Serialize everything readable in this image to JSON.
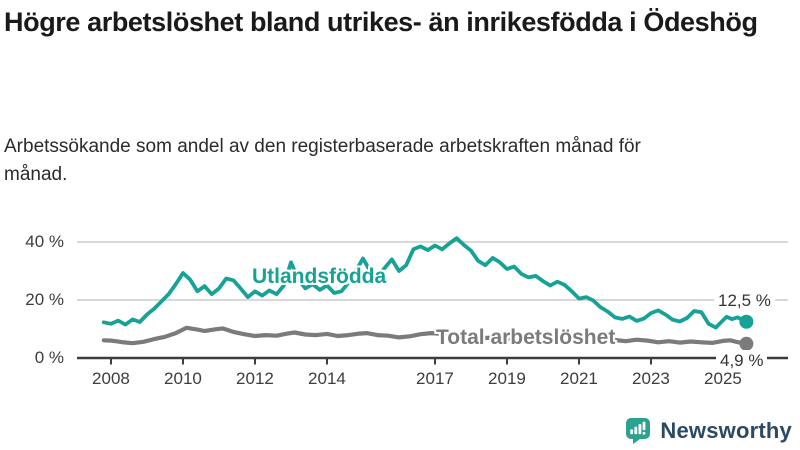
{
  "title": "Högre arbetslöshet bland utrikes- än inrikesfödda i Ödeshög",
  "subtitle": "Arbetssökande som andel av den registerbaserade arbetskraften månad för månad.",
  "colors": {
    "teal_series": "#16a296",
    "gray_series": "#7b7b7b",
    "gridline": "#cccccc",
    "axis": "#3d3d3d",
    "tick_text": "#3d3d3d",
    "logo_teal": "#2ba18f",
    "logo_navy": "#2c4a63"
  },
  "chart_data": {
    "type": "line",
    "title": "Högre arbetslöshet bland utrikes- än inrikesfödda i Ödeshög",
    "xlabel": "",
    "ylabel": "",
    "grid": "horizontal",
    "legend_position": "inline-labels",
    "xlim": [
      2007.056,
      2026.806
    ],
    "ylim": [
      0,
      45
    ],
    "y_ticks": [
      {
        "value": 0,
        "label": "0 %"
      },
      {
        "value": 20,
        "label": "20 %"
      },
      {
        "value": 40,
        "label": "40 %"
      }
    ],
    "x_ticks": [
      2008,
      2010,
      2012,
      2014,
      2017,
      2019,
      2021,
      2023,
      2025
    ],
    "series": [
      {
        "name": "Utlandsfödda",
        "color": "#16a296",
        "end_label": "12,5 %",
        "end_value": 12.5,
        "points": [
          [
            2007.8,
            12.3
          ],
          [
            2008.0,
            11.8
          ],
          [
            2008.2,
            12.9
          ],
          [
            2008.4,
            11.5
          ],
          [
            2008.6,
            13.3
          ],
          [
            2008.8,
            12.4
          ],
          [
            2009.0,
            15.0
          ],
          [
            2009.2,
            17.0
          ],
          [
            2009.4,
            19.5
          ],
          [
            2009.6,
            22.0
          ],
          [
            2009.8,
            25.5
          ],
          [
            2010.0,
            29.3
          ],
          [
            2010.2,
            27.0
          ],
          [
            2010.4,
            23.0
          ],
          [
            2010.6,
            24.8
          ],
          [
            2010.8,
            22.0
          ],
          [
            2011.0,
            24.0
          ],
          [
            2011.2,
            27.4
          ],
          [
            2011.4,
            26.8
          ],
          [
            2011.6,
            24.0
          ],
          [
            2011.8,
            21.0
          ],
          [
            2012.0,
            23.0
          ],
          [
            2012.2,
            21.5
          ],
          [
            2012.4,
            23.3
          ],
          [
            2012.6,
            22.0
          ],
          [
            2012.8,
            25.0
          ],
          [
            2013.0,
            33.0
          ],
          [
            2013.2,
            27.0
          ],
          [
            2013.4,
            24.0
          ],
          [
            2013.6,
            25.5
          ],
          [
            2013.8,
            23.5
          ],
          [
            2014.0,
            25.0
          ],
          [
            2014.2,
            22.4
          ],
          [
            2014.4,
            23.0
          ],
          [
            2014.6,
            26.0
          ],
          [
            2014.8,
            30.0
          ],
          [
            2015.0,
            34.3
          ],
          [
            2015.2,
            30.0
          ],
          [
            2015.4,
            28.0
          ],
          [
            2015.6,
            31.0
          ],
          [
            2015.8,
            34.0
          ],
          [
            2016.0,
            30.0
          ],
          [
            2016.2,
            32.0
          ],
          [
            2016.4,
            37.5
          ],
          [
            2016.6,
            38.5
          ],
          [
            2016.8,
            37.2
          ],
          [
            2017.0,
            38.8
          ],
          [
            2017.2,
            37.5
          ],
          [
            2017.4,
            39.5
          ],
          [
            2017.6,
            41.3
          ],
          [
            2017.8,
            39.0
          ],
          [
            2018.0,
            37.0
          ],
          [
            2018.2,
            33.5
          ],
          [
            2018.4,
            32.0
          ],
          [
            2018.6,
            34.5
          ],
          [
            2018.8,
            33.0
          ],
          [
            2019.0,
            30.7
          ],
          [
            2019.2,
            31.5
          ],
          [
            2019.4,
            29.0
          ],
          [
            2019.6,
            27.8
          ],
          [
            2019.8,
            28.3
          ],
          [
            2020.0,
            26.5
          ],
          [
            2020.2,
            25.0
          ],
          [
            2020.4,
            26.3
          ],
          [
            2020.6,
            25.2
          ],
          [
            2020.8,
            23.0
          ],
          [
            2021.0,
            20.5
          ],
          [
            2021.2,
            21.0
          ],
          [
            2021.4,
            19.8
          ],
          [
            2021.6,
            17.5
          ],
          [
            2021.8,
            16.0
          ],
          [
            2022.0,
            14.0
          ],
          [
            2022.2,
            13.5
          ],
          [
            2022.4,
            14.3
          ],
          [
            2022.6,
            12.8
          ],
          [
            2022.8,
            13.6
          ],
          [
            2023.0,
            15.5
          ],
          [
            2023.2,
            16.4
          ],
          [
            2023.4,
            15.0
          ],
          [
            2023.6,
            13.2
          ],
          [
            2023.8,
            12.6
          ],
          [
            2024.0,
            13.8
          ],
          [
            2024.2,
            16.2
          ],
          [
            2024.4,
            15.8
          ],
          [
            2024.6,
            11.8
          ],
          [
            2024.8,
            10.5
          ],
          [
            2025.0,
            13.0
          ],
          [
            2025.1,
            14.2
          ],
          [
            2025.25,
            13.4
          ],
          [
            2025.4,
            14.0
          ],
          [
            2025.55,
            13.2
          ],
          [
            2025.65,
            12.5
          ]
        ]
      },
      {
        "name": "Total arbetslöshet",
        "color": "#7b7b7b",
        "end_label": "4,9 %",
        "end_value": 4.9,
        "points": [
          [
            2007.8,
            6.1
          ],
          [
            2008.0,
            6.0
          ],
          [
            2008.3,
            5.5
          ],
          [
            2008.6,
            5.1
          ],
          [
            2008.9,
            5.6
          ],
          [
            2009.2,
            6.5
          ],
          [
            2009.5,
            7.3
          ],
          [
            2009.8,
            8.6
          ],
          [
            2010.1,
            10.4
          ],
          [
            2010.4,
            9.8
          ],
          [
            2010.6,
            9.3
          ],
          [
            2010.9,
            9.9
          ],
          [
            2011.1,
            10.2
          ],
          [
            2011.4,
            9.0
          ],
          [
            2011.7,
            8.2
          ],
          [
            2012.0,
            7.6
          ],
          [
            2012.3,
            7.9
          ],
          [
            2012.6,
            7.7
          ],
          [
            2012.9,
            8.4
          ],
          [
            2013.1,
            8.8
          ],
          [
            2013.4,
            8.1
          ],
          [
            2013.7,
            7.9
          ],
          [
            2014.0,
            8.3
          ],
          [
            2014.3,
            7.6
          ],
          [
            2014.6,
            7.9
          ],
          [
            2014.9,
            8.4
          ],
          [
            2015.1,
            8.6
          ],
          [
            2015.4,
            7.9
          ],
          [
            2015.7,
            7.7
          ],
          [
            2016.0,
            7.1
          ],
          [
            2016.3,
            7.5
          ],
          [
            2016.6,
            8.2
          ],
          [
            2016.9,
            8.6
          ],
          [
            2017.2,
            8.3
          ],
          [
            2017.5,
            7.8
          ],
          [
            2017.8,
            7.5
          ],
          [
            2018.1,
            7.2
          ],
          [
            2018.4,
            6.9
          ],
          [
            2018.7,
            7.1
          ],
          [
            2019.0,
            6.8
          ],
          [
            2019.3,
            6.6
          ],
          [
            2019.6,
            6.9
          ],
          [
            2019.9,
            7.4
          ],
          [
            2020.2,
            8.2
          ],
          [
            2020.5,
            8.5
          ],
          [
            2020.8,
            8.1
          ],
          [
            2021.1,
            7.6
          ],
          [
            2021.4,
            7.2
          ],
          [
            2021.7,
            6.6
          ],
          [
            2022.0,
            6.2
          ],
          [
            2022.3,
            5.8
          ],
          [
            2022.6,
            6.3
          ],
          [
            2022.9,
            6.0
          ],
          [
            2023.2,
            5.4
          ],
          [
            2023.5,
            5.8
          ],
          [
            2023.8,
            5.3
          ],
          [
            2024.1,
            5.7
          ],
          [
            2024.4,
            5.4
          ],
          [
            2024.7,
            5.2
          ],
          [
            2025.0,
            5.9
          ],
          [
            2025.2,
            6.1
          ],
          [
            2025.4,
            5.5
          ],
          [
            2025.65,
            4.9
          ]
        ]
      }
    ]
  },
  "logo": {
    "text": "Newsworthy",
    "icon": "bar-chart-speech-bubble"
  }
}
